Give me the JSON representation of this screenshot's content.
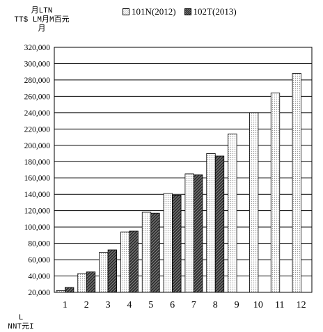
{
  "chart_data": {
    "type": "bar",
    "title": "",
    "ylabel_lines": [
      "月LTN",
      "TT$ LM月M百元",
      "月"
    ],
    "xlabel_lines": [
      "L",
      "NNT元I"
    ],
    "categories": [
      "1",
      "2",
      "3",
      "4",
      "5",
      "6",
      "7",
      "8",
      "9",
      "10",
      "11",
      "12"
    ],
    "series": [
      {
        "name": "101N(2012)",
        "values": [
          22000,
          43000,
          69000,
          94000,
          118000,
          141000,
          165000,
          190000,
          214000,
          240000,
          264000,
          288000
        ]
      },
      {
        "name": "102T(2013)",
        "values": [
          26000,
          45000,
          72000,
          95000,
          117000,
          139000,
          164000,
          187000,
          null,
          null,
          null,
          null
        ]
      }
    ],
    "ylim": [
      20000,
      320000
    ],
    "yticks": [
      "20,000",
      "40,000",
      "60,000",
      "80,000",
      "100,000",
      "120,000",
      "140,000",
      "160,000",
      "180,000",
      "200,000",
      "220,000",
      "240,000",
      "260,000",
      "280,000",
      "300,000",
      "320,000"
    ],
    "ytick_values": [
      20000,
      40000,
      60000,
      80000,
      100000,
      120000,
      140000,
      160000,
      180000,
      200000,
      220000,
      240000,
      260000,
      280000,
      300000,
      320000
    ],
    "grid": "horizontal",
    "legend_position": "top",
    "colors": {
      "series_2012": "#e6e6e6",
      "series_2013": "#4a4a4a",
      "grid": "#000000"
    }
  }
}
